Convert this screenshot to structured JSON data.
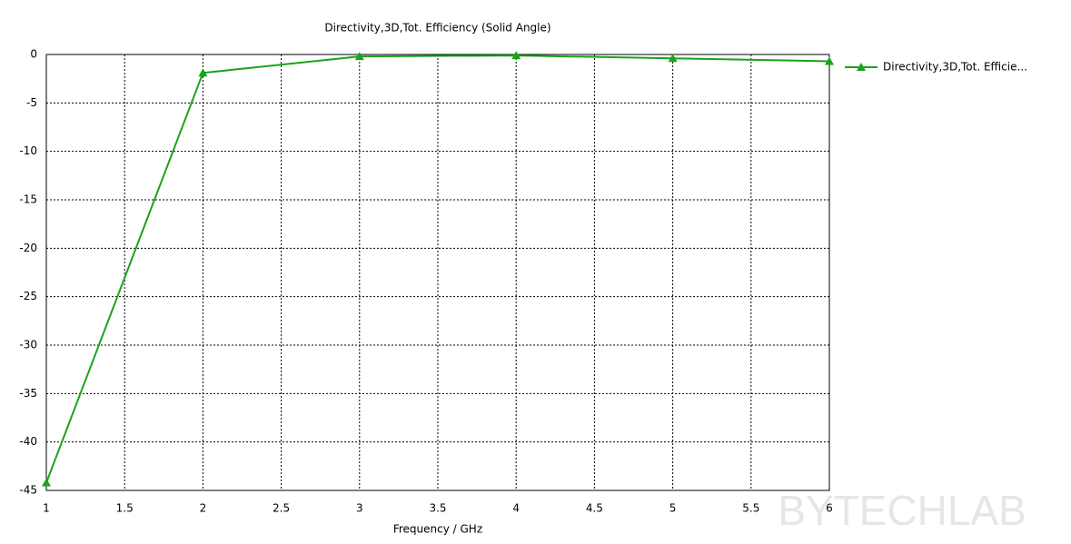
{
  "chart_data": {
    "type": "line",
    "title": "Directivity,3D,Tot. Efficiency (Solid Angle)",
    "x_label": "Frequency / GHz",
    "x": [
      1,
      2,
      3,
      4,
      5,
      6
    ],
    "series": [
      {
        "name": "Directivity,3D,Tot. Efficie...",
        "color": "#1aa31a",
        "values": [
          -44.2,
          -1.9,
          -0.2,
          -0.1,
          -0.4,
          -0.7
        ]
      }
    ],
    "xlim": [
      1,
      6
    ],
    "xticks": [
      1,
      1.5,
      2,
      2.5,
      3,
      3.5,
      4,
      4.5,
      5,
      5.5,
      6
    ],
    "ylim": [
      -45,
      0
    ],
    "yticks": [
      0,
      -5,
      -10,
      -15,
      -20,
      -25,
      -30,
      -35,
      -40,
      -45
    ],
    "grid": true,
    "legend": "right",
    "watermark": "BYTECHLAB"
  }
}
